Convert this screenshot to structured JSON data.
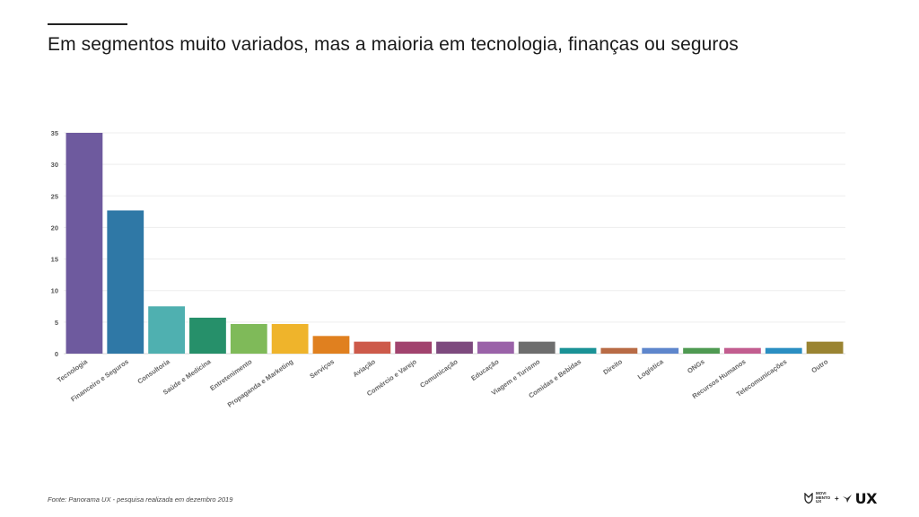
{
  "header": {
    "title": "Em segmentos muito variados, mas a maioria em tecnologia, finanças ou seguros"
  },
  "footer": {
    "source": "Fonte: Panorama UX - pesquisa realizada em dezembro 2019",
    "logo_text_1": "MOVI",
    "logo_text_2": "MENTO",
    "logo_text_3": "UX",
    "logo_plus": "+",
    "logo_ux": "UX"
  },
  "chart_data": {
    "type": "bar",
    "title": "",
    "xlabel": "",
    "ylabel": "",
    "ylim": [
      0,
      35
    ],
    "yticks": [
      0,
      5,
      10,
      15,
      20,
      25,
      30,
      35
    ],
    "grid": true,
    "categories": [
      "Tecnologia",
      "Financeiro e Seguros",
      "Consultoria",
      "Saúde e Medicina",
      "Entretenimento",
      "Propaganda e Marketing",
      "Serviços",
      "Aviação",
      "Comércio e Varejo",
      "Comunicação",
      "Educação",
      "Viagem e Turismo",
      "Comidas e Bebidas",
      "Direito",
      "Logística",
      "ONGs",
      "Recursos Humanos",
      "Telecomunicações",
      "Outro"
    ],
    "values": [
      35,
      22.7,
      7.5,
      5.7,
      4.7,
      4.7,
      2.8,
      1.9,
      1.9,
      1.9,
      1.9,
      1.9,
      0.9,
      0.9,
      0.9,
      0.9,
      0.9,
      0.9,
      1.9
    ],
    "colors": [
      "#6e5a9e",
      "#2f78a6",
      "#4fb0b0",
      "#26906a",
      "#7fba59",
      "#efb42b",
      "#e0801f",
      "#cd5a4a",
      "#a1436e",
      "#7d4a7e",
      "#9a62a8",
      "#6e6e6e",
      "#1a9296",
      "#b86b45",
      "#5e86cc",
      "#4f9a52",
      "#c25d8f",
      "#2a8ec2",
      "#9a8432"
    ]
  }
}
